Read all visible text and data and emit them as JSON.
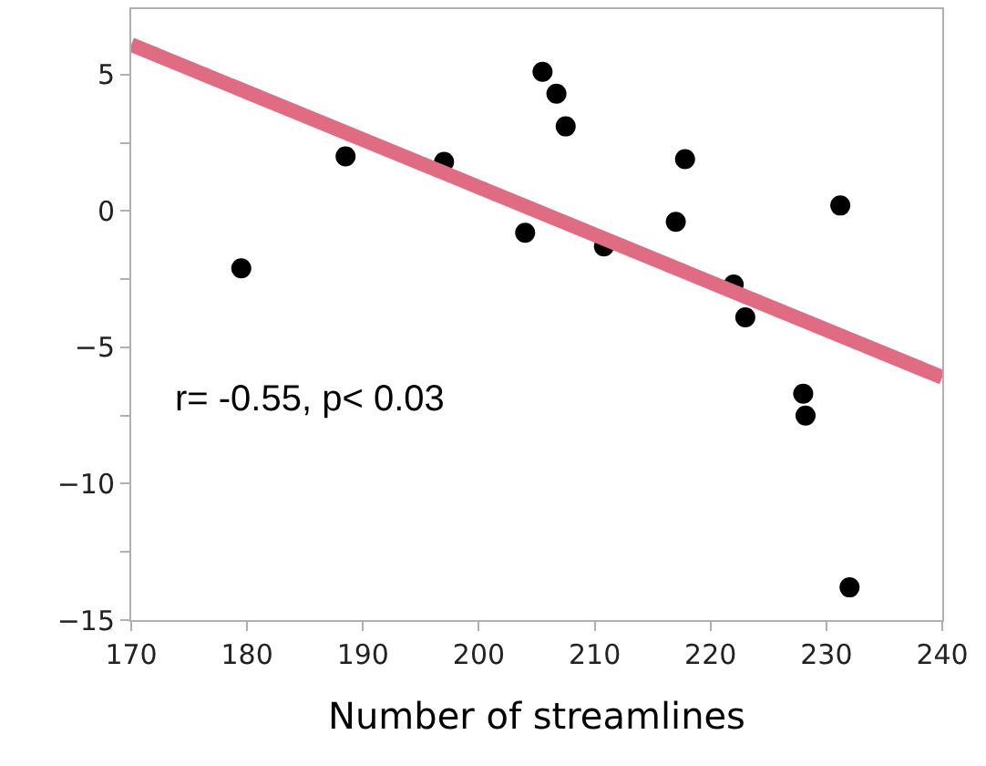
{
  "chart_data": {
    "type": "scatter",
    "xlabel": "Number of streamlines",
    "annotations": [
      "r= -0.55, p< 0.03"
    ],
    "series": [
      {
        "color": "#000000",
        "marker": "circle",
        "x": [
          179.5,
          188.5,
          197,
          204,
          205.5,
          206.7,
          207.5,
          210.8,
          217,
          217.8,
          222,
          223,
          228,
          228.2,
          231.2,
          232
        ],
        "values": [
          -2.1,
          2.0,
          1.8,
          -0.8,
          5.1,
          4.3,
          3.1,
          -1.3,
          -0.4,
          1.9,
          -2.7,
          -3.9,
          -6.7,
          -7.5,
          0.2,
          -13.8
        ]
      },
      {
        "type": "line",
        "color": "#e06c84",
        "marker": "none",
        "x": [
          170,
          240
        ],
        "values": [
          6.1,
          -6.1
        ]
      }
    ],
    "xlim": [
      170,
      240
    ],
    "xticks": [
      170,
      180,
      190,
      200,
      210,
      220,
      230,
      240
    ],
    "ylim": [
      -15,
      7.4
    ],
    "yticks": [
      -15,
      {
        "value": -12.5,
        "label": null
      },
      -10,
      {
        "value": -7.5,
        "label": null
      },
      -5,
      {
        "value": -2.5,
        "label": null
      },
      0,
      {
        "value": 2.5,
        "label": null
      },
      5
    ],
    "tick_labels": true
  }
}
